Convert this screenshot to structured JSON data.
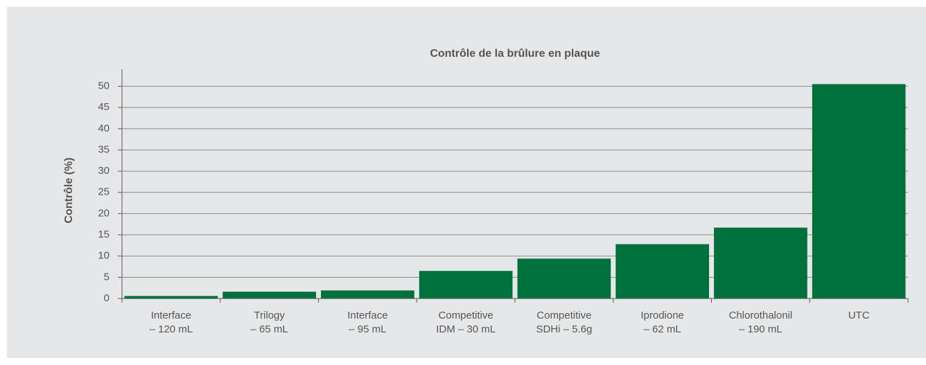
{
  "chart_data": {
    "type": "bar",
    "title": "Contrôle de la brûlure en plaque",
    "y_label": "Contrôle (%)",
    "categories": [
      [
        "Interface",
        "– 120 mL"
      ],
      [
        "Trilogy",
        "– 65 mL"
      ],
      [
        "Interface",
        "– 95 mL"
      ],
      [
        "Competitive",
        "IDM – 30 mL"
      ],
      [
        "Competitive",
        "SDHi – 5.6g"
      ],
      [
        "Iprodione",
        "– 62 mL"
      ],
      [
        "Chlorothalonil",
        "– 190 mL"
      ],
      [
        "UTC"
      ]
    ],
    "values": [
      0.6,
      1.6,
      1.9,
      6.5,
      9.4,
      12.8,
      16.7,
      50.5
    ],
    "color": "#00703c",
    "ylim": [
      0,
      54
    ],
    "yticks": [
      0,
      5,
      10,
      15,
      20,
      25,
      30,
      35,
      40,
      45,
      50
    ],
    "grid": true
  }
}
